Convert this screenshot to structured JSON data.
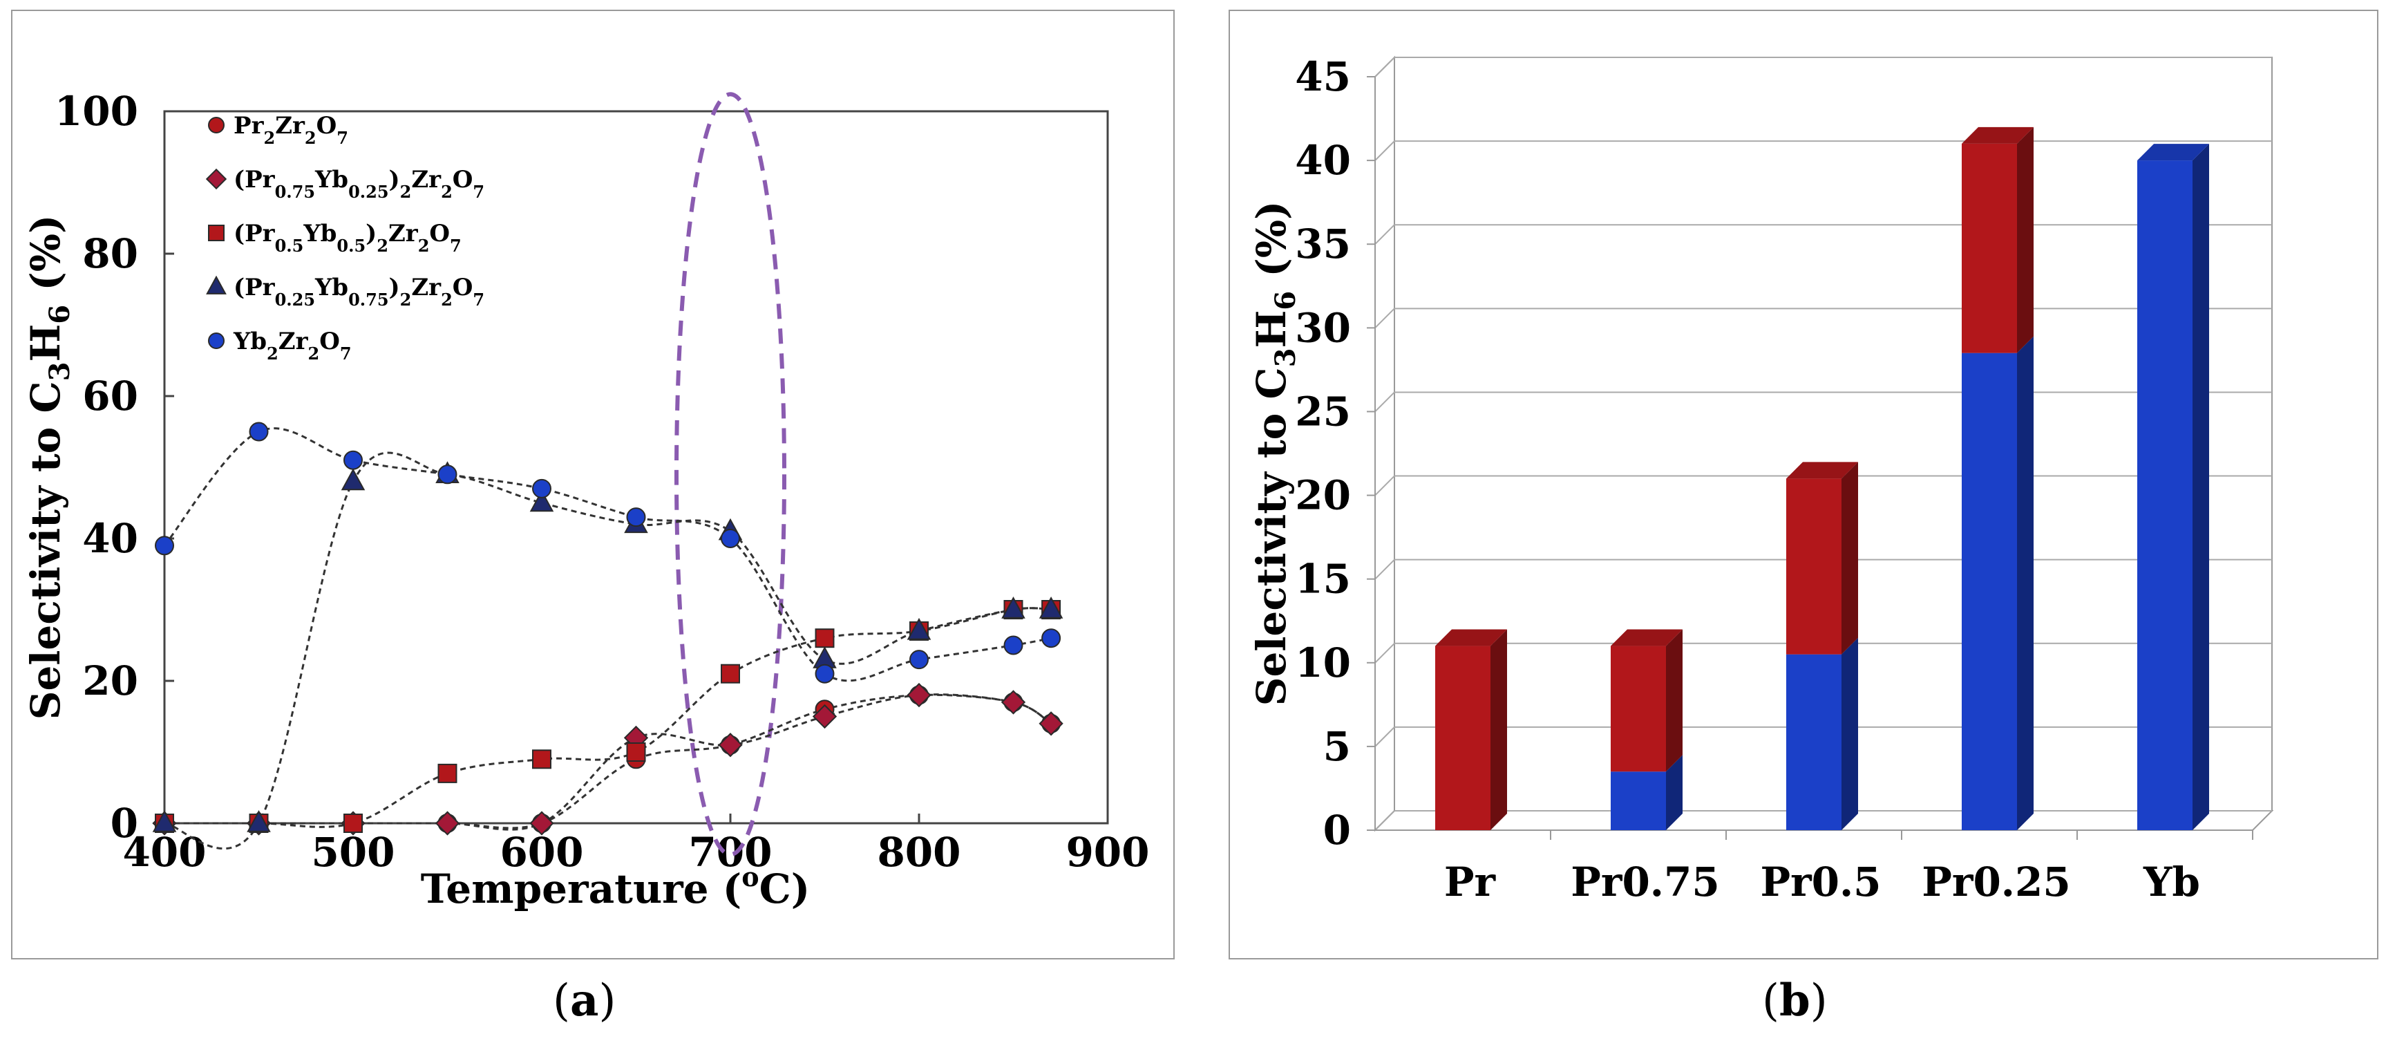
{
  "colors": {
    "red": "#b2171b",
    "blue": "#1b40c8",
    "navy": "#1f2a6e",
    "crimson": "#a31837",
    "violet": "#8a5bb0"
  },
  "captions": {
    "a": "a",
    "b": "b"
  },
  "chart_data": [
    {
      "type": "line",
      "panel": "a",
      "title": "",
      "xlabel": "Temperature (",
      "xlabel_sup": "o",
      "xlabel_end": "C)",
      "ylabel": "Selectivity to C",
      "ylabel_sub1": "3",
      "ylabel_mid": "H",
      "ylabel_sub2": "6",
      "ylabel_end": " (%)",
      "xlim": [
        400,
        900
      ],
      "ylim": [
        0,
        100
      ],
      "xticks": [
        400,
        500,
        600,
        700,
        800,
        900
      ],
      "yticks": [
        0,
        20,
        40,
        60,
        80,
        100
      ],
      "highlight": {
        "x_center": 700,
        "note": "dashed ellipse around 700 °C"
      },
      "legend": [
        {
          "series": 0,
          "parts": [
            [
              "Pr",
              ""
            ],
            [
              "2",
              ""
            ],
            [
              "Zr",
              ""
            ],
            [
              "2",
              ""
            ],
            [
              "O",
              ""
            ],
            [
              "7",
              ""
            ]
          ]
        },
        {
          "series": 1,
          "parts": [
            [
              "(Pr",
              ""
            ],
            [
              "0.75",
              ""
            ],
            [
              "Yb",
              ""
            ],
            [
              "0.25",
              ""
            ],
            [
              ")",
              ""
            ],
            [
              "2",
              ""
            ],
            [
              "Zr",
              ""
            ],
            [
              "2",
              ""
            ],
            [
              "O",
              ""
            ],
            [
              "7",
              ""
            ]
          ]
        },
        {
          "series": 2,
          "parts": [
            [
              "(Pr",
              ""
            ],
            [
              "0.5",
              ""
            ],
            [
              "Yb",
              ""
            ],
            [
              "0.5",
              ""
            ],
            [
              ")",
              ""
            ],
            [
              "2",
              ""
            ],
            [
              "Zr",
              ""
            ],
            [
              "2",
              ""
            ],
            [
              "O",
              ""
            ],
            [
              "7",
              ""
            ]
          ]
        },
        {
          "series": 3,
          "parts": [
            [
              "(Pr",
              ""
            ],
            [
              "0.25",
              ""
            ],
            [
              "Yb",
              ""
            ],
            [
              "0.75",
              ""
            ],
            [
              ")",
              ""
            ],
            [
              "2",
              ""
            ],
            [
              "Zr",
              ""
            ],
            [
              "2",
              ""
            ],
            [
              "O",
              ""
            ],
            [
              "7",
              ""
            ]
          ]
        },
        {
          "series": 4,
          "parts": [
            [
              "Yb",
              ""
            ],
            [
              "2",
              ""
            ],
            [
              "Zr",
              ""
            ],
            [
              "2",
              ""
            ],
            [
              "O",
              ""
            ],
            [
              "7",
              ""
            ]
          ]
        }
      ],
      "series": [
        {
          "name": "Pr2Zr2O7",
          "marker": "circle",
          "color": "#b2171b",
          "x": [
            400,
            450,
            500,
            550,
            600,
            650,
            700,
            750,
            800,
            850,
            870
          ],
          "y": [
            0,
            0,
            0,
            0,
            0,
            9,
            11,
            16,
            18,
            17,
            14
          ]
        },
        {
          "name": "(Pr0.75Yb0.25)2Zr2O7",
          "marker": "diamond",
          "color": "#a31837",
          "x": [
            400,
            450,
            500,
            550,
            600,
            650,
            700,
            750,
            800,
            850,
            870
          ],
          "y": [
            0,
            0,
            0,
            0,
            0,
            12,
            11,
            15,
            18,
            17,
            14
          ]
        },
        {
          "name": "(Pr0.5Yb0.5)2Zr2O7",
          "marker": "square",
          "color": "#b2171b",
          "x": [
            400,
            450,
            500,
            550,
            600,
            650,
            700,
            750,
            800,
            850,
            870
          ],
          "y": [
            0,
            0,
            0,
            7,
            9,
            10,
            21,
            26,
            27,
            30,
            30
          ]
        },
        {
          "name": "(Pr0.25Yb0.75)2Zr2O7",
          "marker": "triangle",
          "color": "#1f2a6e",
          "x": [
            400,
            450,
            500,
            550,
            600,
            650,
            700,
            750,
            800,
            850,
            870
          ],
          "y": [
            0,
            0,
            48,
            49,
            45,
            42,
            41,
            23,
            27,
            30,
            30
          ]
        },
        {
          "name": "Yb2Zr2O7",
          "marker": "circle",
          "color": "#1b40c8",
          "x": [
            400,
            450,
            500,
            550,
            600,
            650,
            700,
            750,
            800,
            850,
            870
          ],
          "y": [
            39,
            55,
            51,
            49,
            47,
            43,
            40,
            21,
            23,
            25,
            26
          ]
        }
      ]
    },
    {
      "type": "bar",
      "panel": "b",
      "stacked": true,
      "style": "3d",
      "title": "",
      "xlabel": "",
      "ylabel": "Selectivity to C",
      "ylabel_sub1": "3",
      "ylabel_mid": "H",
      "ylabel_sub2": "6",
      "ylabel_end": " (%)",
      "ylim": [
        0,
        45
      ],
      "yticks": [
        0,
        5,
        10,
        15,
        20,
        25,
        30,
        35,
        40,
        45
      ],
      "categories": [
        "Pr",
        "Pr0.75",
        "Pr0.5",
        "Pr0.25",
        "Yb"
      ],
      "series": [
        {
          "name": "Yb",
          "color": "#1b40c8",
          "values": [
            0,
            3.5,
            10.5,
            28.5,
            40
          ]
        },
        {
          "name": "Pr",
          "color": "#b2171b",
          "values": [
            11,
            7.5,
            10.5,
            12.5,
            0
          ]
        }
      ]
    }
  ]
}
